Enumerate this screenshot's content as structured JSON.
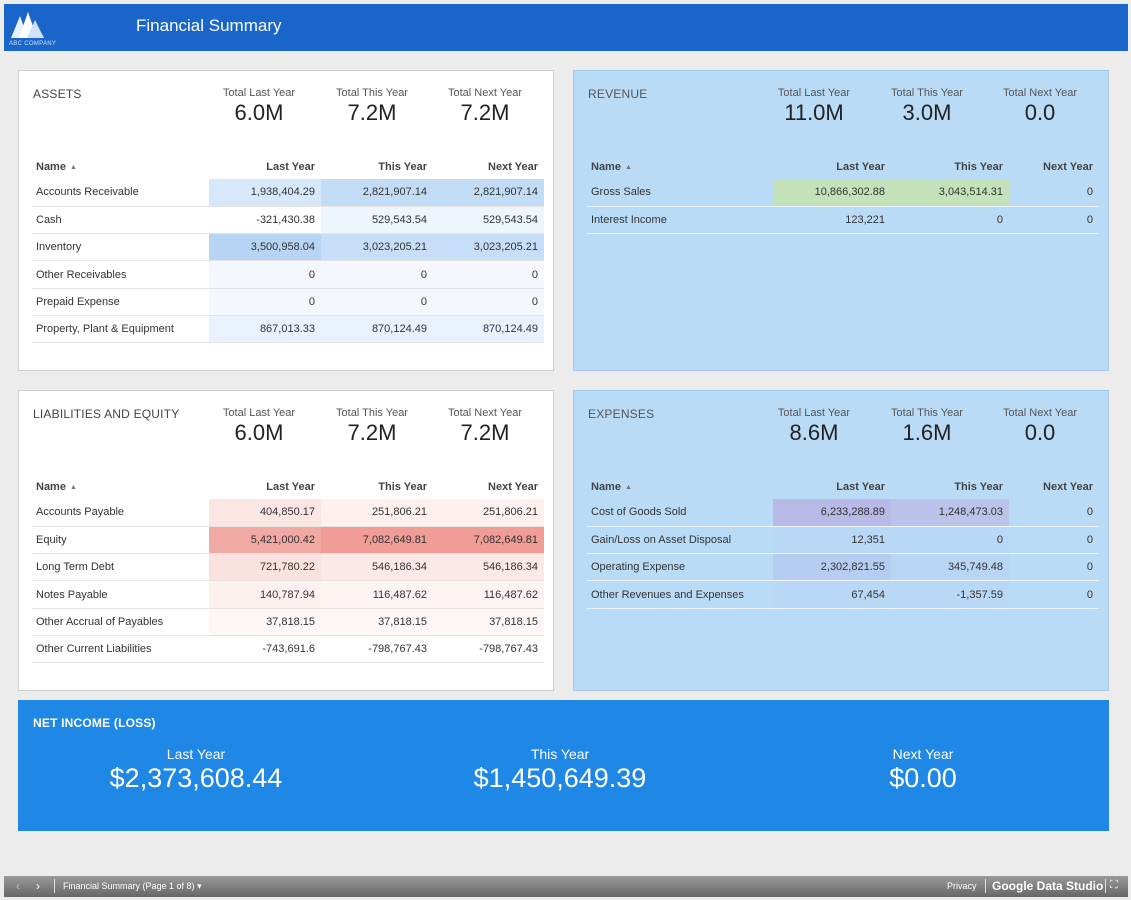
{
  "header": {
    "title": "Financial Summary",
    "logo_text": "ABC COMPANY"
  },
  "kpi_labels": {
    "last": "Total Last Year",
    "this": "Total This Year",
    "next": "Total Next Year"
  },
  "table_headers": {
    "name": "Name",
    "last": "Last Year",
    "this": "This Year",
    "next": "Next Year"
  },
  "assets": {
    "title": "ASSETS",
    "kpis": {
      "last": "6.0M",
      "this": "7.2M",
      "next": "7.2M"
    },
    "rows": [
      {
        "name": "Accounts Receivable",
        "last": "1,938,404.29",
        "this": "2,821,907.14",
        "next": "2,821,907.14"
      },
      {
        "name": "Cash",
        "last": "-321,430.38",
        "this": "529,543.54",
        "next": "529,543.54"
      },
      {
        "name": "Inventory",
        "last": "3,500,958.04",
        "this": "3,023,205.21",
        "next": "3,023,205.21"
      },
      {
        "name": "Other Receivables",
        "last": "0",
        "this": "0",
        "next": "0"
      },
      {
        "name": "Prepaid Expense",
        "last": "0",
        "this": "0",
        "next": "0"
      },
      {
        "name": "Property, Plant & Equipment",
        "last": "867,013.33",
        "this": "870,124.49",
        "next": "870,124.49"
      }
    ]
  },
  "revenue": {
    "title": "REVENUE",
    "kpis": {
      "last": "11.0M",
      "this": "3.0M",
      "next": "0.0"
    },
    "rows": [
      {
        "name": "Gross Sales",
        "last": "10,866,302.88",
        "this": "3,043,514.31",
        "next": "0"
      },
      {
        "name": "Interest Income",
        "last": "123,221",
        "this": "0",
        "next": "0"
      }
    ]
  },
  "liabilities": {
    "title": "LIABILITIES AND EQUITY",
    "kpis": {
      "last": "6.0M",
      "this": "7.2M",
      "next": "7.2M"
    },
    "rows": [
      {
        "name": "Accounts Payable",
        "last": "404,850.17",
        "this": "251,806.21",
        "next": "251,806.21"
      },
      {
        "name": "Equity",
        "last": "5,421,000.42",
        "this": "7,082,649.81",
        "next": "7,082,649.81"
      },
      {
        "name": "Long Term Debt",
        "last": "721,780.22",
        "this": "546,186.34",
        "next": "546,186.34"
      },
      {
        "name": "Notes Payable",
        "last": "140,787.94",
        "this": "116,487.62",
        "next": "116,487.62"
      },
      {
        "name": "Other Accrual of Payables",
        "last": "37,818.15",
        "this": "37,818.15",
        "next": "37,818.15"
      },
      {
        "name": "Other Current Liabilities",
        "last": "-743,691.6",
        "this": "-798,767.43",
        "next": "-798,767.43"
      }
    ]
  },
  "expenses": {
    "title": "EXPENSES",
    "kpis": {
      "last": "8.6M",
      "this": "1.6M",
      "next": "0.0"
    },
    "rows": [
      {
        "name": "Cost of Goods Sold",
        "last": "6,233,288.89",
        "this": "1,248,473.03",
        "next": "0"
      },
      {
        "name": "Gain/Loss on Asset Disposal",
        "last": "12,351",
        "this": "0",
        "next": "0"
      },
      {
        "name": "Operating Expense",
        "last": "2,302,821.55",
        "this": "345,749.48",
        "next": "0"
      },
      {
        "name": "Other Revenues and Expenses",
        "last": "67,454",
        "this": "-1,357.59",
        "next": "0"
      }
    ]
  },
  "net_income": {
    "title": "NET INCOME (LOSS)",
    "last_label": "Last Year",
    "last_value": "$2,373,608.44",
    "this_label": "This Year",
    "this_value": "$1,450,649.39",
    "next_label": "Next Year",
    "next_value": "$0.00"
  },
  "footer": {
    "page_label": "Financial Summary (Page 1 of 8)",
    "privacy": "Privacy",
    "brand": "Google Data Studio"
  },
  "colors": {
    "header": "#1a65c9",
    "net_income_bg": "#1f87e5",
    "blue_card_bg": "#b9dbf6"
  }
}
